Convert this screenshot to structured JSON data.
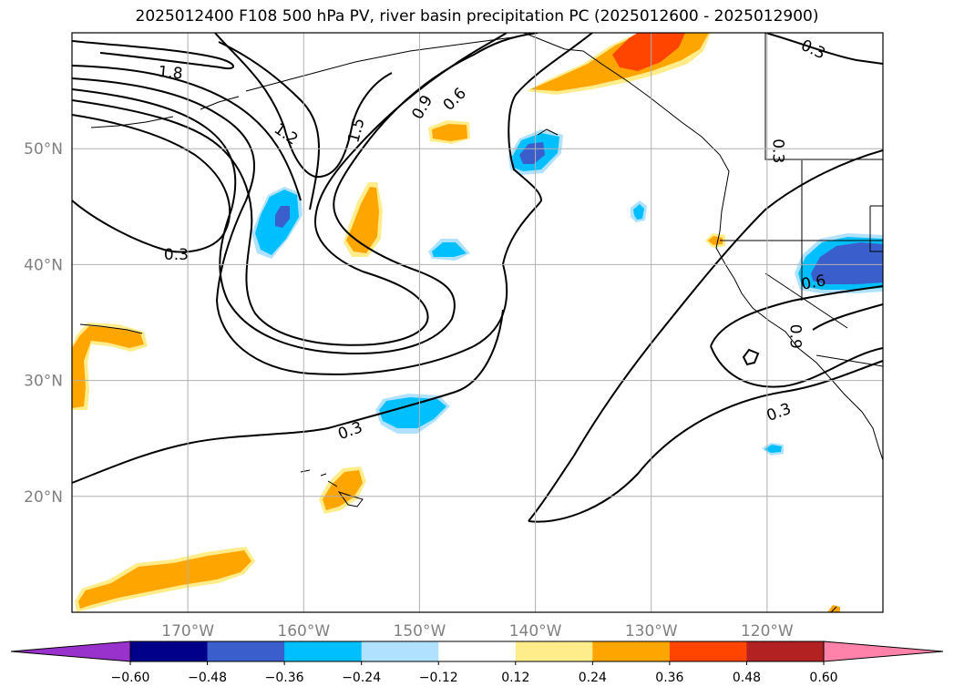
{
  "title": "2025012400 F108 500 hPa PV, river basin precipitation PC (2025012600 - 2025012900)",
  "chart_data": {
    "type": "map",
    "lon_range": [
      -180,
      -110
    ],
    "lat_range": [
      10,
      60
    ],
    "grid": true,
    "x_ticks": [
      {
        "lon": -170,
        "label": "170°W"
      },
      {
        "lon": -160,
        "label": "160°W"
      },
      {
        "lon": -150,
        "label": "150°W"
      },
      {
        "lon": -140,
        "label": "140°W"
      },
      {
        "lon": -130,
        "label": "130°W"
      },
      {
        "lon": -120,
        "label": "120°W"
      }
    ],
    "y_ticks": [
      {
        "lat": 20,
        "label": "20°N"
      },
      {
        "lat": 30,
        "label": "30°N"
      },
      {
        "lat": 40,
        "label": "40°N"
      },
      {
        "lat": 50,
        "label": "50°N"
      }
    ],
    "pv_contour_labels": [
      {
        "text": "1.8",
        "lon": -171.5,
        "lat": 56.6,
        "angle": 5
      },
      {
        "text": "1.5",
        "lon": -155.5,
        "lat": 51.6,
        "angle": -75
      },
      {
        "text": "1.2",
        "lon": -161.5,
        "lat": 51.3,
        "angle": 35
      },
      {
        "text": "0.9",
        "lon": -149.8,
        "lat": 53.6,
        "angle": -60
      },
      {
        "text": "0.6",
        "lon": -147.0,
        "lat": 54.3,
        "angle": -45
      },
      {
        "text": "0.3",
        "lon": -171.0,
        "lat": 40.9,
        "angle": 0
      },
      {
        "text": "0.3",
        "lon": -156.0,
        "lat": 25.7,
        "angle": -20
      },
      {
        "text": "0.3",
        "lon": -116.0,
        "lat": 58.6,
        "angle": 25
      },
      {
        "text": "0.3",
        "lon": -119.0,
        "lat": 49.8,
        "angle": 90
      },
      {
        "text": "0.3",
        "lon": -119.0,
        "lat": 27.3,
        "angle": -20
      },
      {
        "text": "0.6",
        "lon": -116.0,
        "lat": 38.5,
        "angle": -10
      },
      {
        "text": "0.9",
        "lon": -117.5,
        "lat": 33.8,
        "angle": 90
      }
    ],
    "colorbar": {
      "colors": [
        "#9932cc",
        "#00008b",
        "#3a5fcd",
        "#00bfff",
        "#b0e2ff",
        "#ffffff",
        "#ffec8b",
        "#ffa500",
        "#ff4500",
        "#b22222",
        "#ff82ab"
      ],
      "levels": [
        -0.6,
        -0.48,
        -0.36,
        -0.24,
        -0.12,
        0.12,
        0.24,
        0.36,
        0.48,
        0.6
      ],
      "tick_labels": [
        "−0.60",
        "−0.48",
        "−0.36",
        "−0.24",
        "−0.12",
        "0.12",
        "0.24",
        "0.36",
        "0.48",
        "0.60"
      ],
      "extend": "both"
    }
  }
}
